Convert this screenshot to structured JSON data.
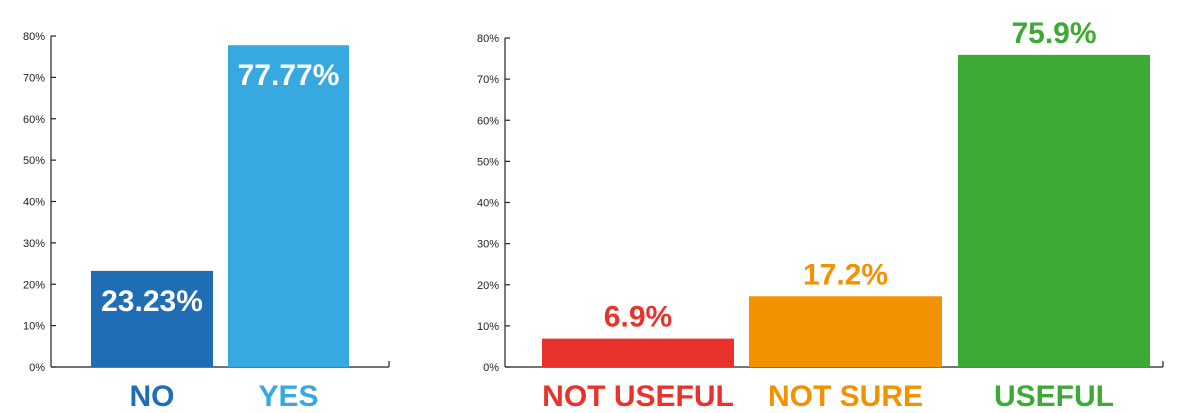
{
  "chart_data": [
    {
      "type": "bar",
      "categories": [
        "NO",
        "YES"
      ],
      "values": [
        23.23,
        77.77
      ],
      "value_labels": [
        "23.23%",
        "77.77%"
      ],
      "bar_colors": [
        "#1f6db5",
        "#37a8e0"
      ],
      "category_label_colors": [
        "#1f6db5",
        "#37a8e0"
      ],
      "value_label_colors": [
        "#ffffff",
        "#ffffff"
      ],
      "value_label_position": "inside-top",
      "ylim": [
        0,
        80
      ],
      "yticks": [
        "0%",
        "10%",
        "20%",
        "30%",
        "40%",
        "50%",
        "60%",
        "70%",
        "80%"
      ],
      "grid": false
    },
    {
      "type": "bar",
      "categories": [
        "NOT USEFUL",
        "NOT SURE",
        "USEFUL"
      ],
      "values": [
        6.9,
        17.2,
        75.9
      ],
      "value_labels": [
        "6.9%",
        "17.2%",
        "75.9%"
      ],
      "bar_colors": [
        "#e8322b",
        "#f29200",
        "#3daa35"
      ],
      "category_label_colors": [
        "#e8322b",
        "#f29200",
        "#3daa35"
      ],
      "value_label_colors": [
        "#e8322b",
        "#f29200",
        "#3daa35"
      ],
      "value_label_position": "above",
      "ylim": [
        0,
        80
      ],
      "yticks": [
        "0%",
        "10%",
        "20%",
        "30%",
        "40%",
        "50%",
        "60%",
        "70%",
        "80%"
      ],
      "grid": false
    }
  ]
}
